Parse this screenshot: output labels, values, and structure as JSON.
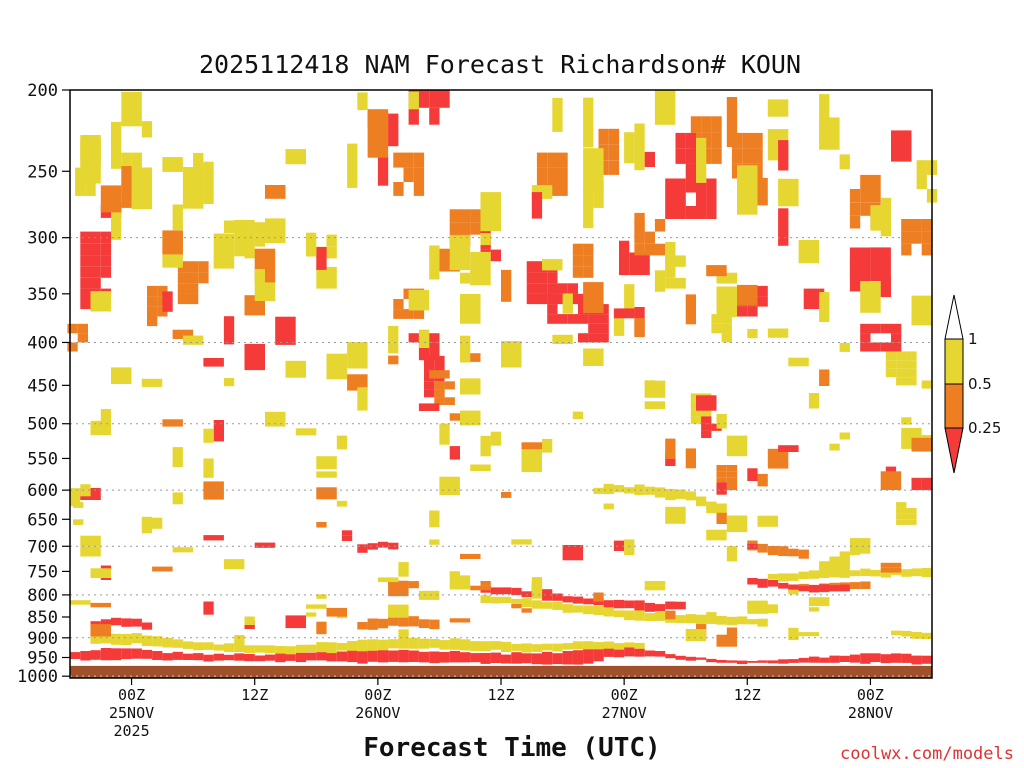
{
  "chart_data": {
    "type": "heatmap",
    "title": "2025112418 NAM Forecast Richardson# KOUN",
    "xlabel": "Forecast Time (UTC)",
    "ylabel": "",
    "credit": "coolwx.com/models",
    "y_axis": {
      "unit": "pressure (hPa)",
      "scale": "log-pressure",
      "range": [
        200,
        1000
      ],
      "ticks": [
        200,
        250,
        300,
        350,
        400,
        450,
        500,
        550,
        600,
        650,
        700,
        750,
        800,
        850,
        900,
        950,
        1000
      ],
      "tick_labels": [
        "200",
        "250",
        "300",
        "350",
        "400",
        "450",
        "500",
        "550",
        "600",
        "650",
        "700",
        "750",
        "800",
        "850",
        "900",
        "950",
        "1000"
      ],
      "dotted_grid_at": [
        300,
        400,
        500,
        600,
        700,
        800,
        900,
        1000
      ]
    },
    "x_axis": {
      "range_hours_from_init": [
        0,
        84
      ],
      "ticks": [
        {
          "hour": 6,
          "lines": [
            "00Z",
            "25NOV",
            "2025"
          ]
        },
        {
          "hour": 18,
          "lines": [
            "12Z"
          ]
        },
        {
          "hour": 30,
          "lines": [
            "00Z",
            "26NOV"
          ]
        },
        {
          "hour": 42,
          "lines": [
            "12Z"
          ]
        },
        {
          "hour": 54,
          "lines": [
            "00Z",
            "27NOV"
          ]
        },
        {
          "hour": 66,
          "lines": [
            "12Z"
          ]
        },
        {
          "hour": 78,
          "lines": [
            "00Z",
            "28NOV"
          ]
        }
      ]
    },
    "colorbar": {
      "labels": [
        "1",
        "0.5",
        "0.25"
      ],
      "bins": [
        {
          "range": "> 1",
          "color": "#ffffff"
        },
        {
          "range": "0.5 - 1",
          "color": "#e6d632"
        },
        {
          "range": "0.25 - 0.5",
          "color": "#ee7e22"
        },
        {
          "range": "< 0.25",
          "color": "#f53a3a"
        }
      ]
    },
    "colors": {
      "low": "#f53a3a",
      "mid": "#ee7e22",
      "high": "#e6d632",
      "ground": "#a0502a"
    },
    "cell_size": {
      "dt_hours": 1,
      "dp_hpa": 10
    },
    "ground_pressure": [
      [
        0,
        972
      ],
      [
        6,
        972
      ],
      [
        12,
        972
      ],
      [
        18,
        972
      ],
      [
        24,
        972
      ],
      [
        30,
        972
      ],
      [
        36,
        972
      ],
      [
        42,
        972
      ],
      [
        48,
        972
      ],
      [
        54,
        972
      ],
      [
        60,
        972
      ],
      [
        66,
        972
      ],
      [
        72,
        972
      ],
      [
        78,
        972
      ],
      [
        84,
        972
      ]
    ],
    "bands": [
      {
        "cls": "low",
        "pts": [
          [
            0,
            935,
            955
          ],
          [
            2,
            930,
            955
          ],
          [
            4,
            925,
            955
          ],
          [
            6,
            925,
            955
          ],
          [
            8,
            935,
            955
          ],
          [
            12,
            940,
            958
          ],
          [
            18,
            942,
            960
          ],
          [
            24,
            935,
            960
          ],
          [
            30,
            930,
            965
          ],
          [
            36,
            935,
            962
          ],
          [
            42,
            940,
            965
          ],
          [
            48,
            935,
            968
          ],
          [
            50,
            925,
            965
          ],
          [
            52,
            920,
            950
          ],
          [
            54,
            925,
            945
          ],
          [
            58,
            940,
            950
          ],
          [
            62,
            955,
            962
          ],
          [
            66,
            958,
            966
          ],
          [
            70,
            955,
            965
          ],
          [
            74,
            945,
            962
          ],
          [
            78,
            940,
            965
          ],
          [
            84,
            945,
            968
          ]
        ]
      },
      {
        "cls": "high",
        "pts": [
          [
            2,
            895,
            915
          ],
          [
            6,
            890,
            915
          ],
          [
            10,
            905,
            925
          ],
          [
            14,
            915,
            935
          ],
          [
            20,
            920,
            940
          ],
          [
            26,
            910,
            935
          ],
          [
            32,
            900,
            925
          ],
          [
            38,
            905,
            930
          ],
          [
            44,
            915,
            935
          ],
          [
            50,
            910,
            930
          ],
          [
            56,
            915,
            925
          ]
        ]
      },
      {
        "cls": "low",
        "pts": [
          [
            2,
            860,
            880
          ],
          [
            4,
            850,
            870
          ],
          [
            6,
            855,
            875
          ],
          [
            8,
            870,
            885
          ]
        ]
      },
      {
        "cls": "mid",
        "pts": [
          [
            28,
            860,
            880
          ],
          [
            32,
            845,
            870
          ],
          [
            36,
            860,
            880
          ]
        ]
      },
      {
        "cls": "low",
        "pts": [
          [
            40,
            780,
            795
          ],
          [
            42,
            785,
            800
          ],
          [
            44,
            790,
            805
          ],
          [
            46,
            790,
            810
          ],
          [
            48,
            800,
            815
          ],
          [
            50,
            805,
            820
          ],
          [
            52,
            810,
            830
          ],
          [
            54,
            810,
            830
          ],
          [
            56,
            820,
            840
          ],
          [
            58,
            815,
            835
          ],
          [
            60,
            810,
            830
          ]
        ]
      },
      {
        "cls": "high",
        "pts": [
          [
            40,
            800,
            815
          ],
          [
            44,
            810,
            825
          ],
          [
            48,
            820,
            840
          ],
          [
            52,
            830,
            850
          ],
          [
            56,
            840,
            860
          ],
          [
            60,
            845,
            865
          ],
          [
            64,
            850,
            870
          ],
          [
            68,
            855,
            870
          ]
        ]
      },
      {
        "cls": "mid",
        "pts": [
          [
            70,
            780,
            795
          ],
          [
            74,
            775,
            790
          ],
          [
            78,
            770,
            785
          ]
        ]
      },
      {
        "cls": "high",
        "pts": [
          [
            68,
            755,
            770
          ],
          [
            72,
            750,
            765
          ],
          [
            76,
            745,
            760
          ],
          [
            80,
            745,
            760
          ],
          [
            84,
            745,
            760
          ]
        ]
      },
      {
        "cls": "low",
        "pts": [
          [
            66,
            765,
            780
          ],
          [
            68,
            770,
            785
          ],
          [
            72,
            780,
            795
          ],
          [
            76,
            775,
            790
          ]
        ]
      },
      {
        "cls": "low",
        "pts": [
          [
            28,
            695,
            710
          ],
          [
            30,
            690,
            705
          ],
          [
            32,
            695,
            710
          ]
        ]
      },
      {
        "cls": "mid",
        "pts": [
          [
            31,
            765,
            780
          ],
          [
            34,
            770,
            785
          ]
        ]
      },
      {
        "cls": "high",
        "pts": [
          [
            52,
            590,
            605
          ],
          [
            56,
            595,
            610
          ],
          [
            60,
            600,
            620
          ],
          [
            62,
            620,
            640
          ],
          [
            64,
            630,
            650
          ]
        ]
      },
      {
        "cls": "mid",
        "pts": [
          [
            66,
            690,
            705
          ],
          [
            68,
            700,
            715
          ],
          [
            72,
            710,
            725
          ]
        ]
      },
      {
        "cls": "high",
        "pts": [
          [
            80,
            880,
            895
          ],
          [
            84,
            890,
            910
          ]
        ]
      }
    ],
    "blobs": [
      {
        "t": 2.5,
        "p": 330,
        "dt": 3,
        "dp": 70,
        "cls": "low"
      },
      {
        "t": 0.5,
        "p": 390,
        "dt": 1.5,
        "dp": 40,
        "cls": "mid"
      },
      {
        "t": 1.5,
        "p": 250,
        "dt": 2,
        "dp": 25,
        "cls": "high"
      },
      {
        "t": 6,
        "p": 250,
        "dt": 2,
        "dp": 25,
        "cls": "high"
      },
      {
        "t": 8.5,
        "p": 360,
        "dt": 2,
        "dp": 35,
        "cls": "mid"
      },
      {
        "t": 12,
        "p": 340,
        "dt": 3,
        "dp": 40,
        "cls": "mid"
      },
      {
        "t": 18,
        "p": 300,
        "dt": 2,
        "dp": 25,
        "cls": "high"
      },
      {
        "t": 25,
        "p": 300,
        "dt": 2,
        "dp": 25,
        "cls": "high"
      },
      {
        "t": 33,
        "p": 250,
        "dt": 3,
        "dp": 25,
        "cls": "mid"
      },
      {
        "t": 35,
        "p": 210,
        "dt": 4,
        "dp": 20,
        "cls": "low"
      },
      {
        "t": 33,
        "p": 360,
        "dt": 3,
        "dp": 30,
        "cls": "mid"
      },
      {
        "t": 34.5,
        "p": 405,
        "dt": 3,
        "dp": 30,
        "cls": "low"
      },
      {
        "t": 35.5,
        "p": 440,
        "dt": 2,
        "dp": 50,
        "cls": "low"
      },
      {
        "t": 36.5,
        "p": 460,
        "dt": 2,
        "dp": 30,
        "cls": "mid"
      },
      {
        "t": 39,
        "p": 290,
        "dt": 4,
        "dp": 25,
        "cls": "mid"
      },
      {
        "t": 41,
        "p": 305,
        "dt": 2,
        "dp": 30,
        "cls": "low"
      },
      {
        "t": 46,
        "p": 340,
        "dt": 3,
        "dp": 40,
        "cls": "low"
      },
      {
        "t": 48.5,
        "p": 360,
        "dt": 4,
        "dp": 40,
        "cls": "low"
      },
      {
        "t": 51,
        "p": 380,
        "dt": 3,
        "dp": 40,
        "cls": "low"
      },
      {
        "t": 47,
        "p": 250,
        "dt": 3,
        "dp": 25,
        "cls": "mid"
      },
      {
        "t": 52.5,
        "p": 235,
        "dt": 2,
        "dp": 25,
        "cls": "mid"
      },
      {
        "t": 50,
        "p": 320,
        "dt": 2,
        "dp": 30,
        "cls": "mid"
      },
      {
        "t": 55,
        "p": 315,
        "dt": 3,
        "dp": 25,
        "cls": "low"
      },
      {
        "t": 56.5,
        "p": 300,
        "dt": 3,
        "dp": 30,
        "cls": "mid"
      },
      {
        "t": 60.5,
        "p": 270,
        "dt": 5,
        "dp": 30,
        "cls": "low"
      },
      {
        "t": 62,
        "p": 230,
        "dt": 3,
        "dp": 30,
        "cls": "mid"
      },
      {
        "t": 60,
        "p": 240,
        "dt": 2,
        "dp": 30,
        "cls": "low"
      },
      {
        "t": 66,
        "p": 240,
        "dt": 3,
        "dp": 30,
        "cls": "mid"
      },
      {
        "t": 59,
        "p": 330,
        "dt": 2,
        "dp": 30,
        "cls": "high"
      },
      {
        "t": 66.5,
        "p": 355,
        "dt": 3,
        "dp": 25,
        "cls": "low"
      },
      {
        "t": 72.5,
        "p": 355,
        "dt": 2,
        "dp": 20,
        "cls": "low"
      },
      {
        "t": 77.5,
        "p": 270,
        "dt": 3,
        "dp": 35,
        "cls": "mid"
      },
      {
        "t": 79,
        "p": 395,
        "dt": 4,
        "dp": 30,
        "cls": "low"
      },
      {
        "t": 82.5,
        "p": 300,
        "dt": 3,
        "dp": 30,
        "cls": "mid"
      },
      {
        "t": 83.5,
        "p": 255,
        "dt": 2,
        "dp": 25,
        "cls": "high"
      },
      {
        "t": 81,
        "p": 430,
        "dt": 3,
        "dp": 40,
        "cls": "high"
      },
      {
        "t": 81.5,
        "p": 640,
        "dt": 2,
        "dp": 40,
        "cls": "high"
      },
      {
        "t": 83,
        "p": 590,
        "dt": 2,
        "dp": 20,
        "cls": "low"
      },
      {
        "t": 80,
        "p": 570,
        "dt": 1,
        "dp": 15,
        "cls": "low"
      },
      {
        "t": 64,
        "p": 580,
        "dt": 2,
        "dp": 40,
        "cls": "mid"
      },
      {
        "t": 61.5,
        "p": 480,
        "dt": 2,
        "dp": 40,
        "cls": "high"
      },
      {
        "t": 62.5,
        "p": 505,
        "dt": 2,
        "dp": 30,
        "cls": "low"
      },
      {
        "t": 63.5,
        "p": 385,
        "dt": 2,
        "dp": 30,
        "cls": "high"
      },
      {
        "t": 0.8,
        "p": 640,
        "dt": 1,
        "dp": 60,
        "cls": "high"
      },
      {
        "t": 2,
        "p": 700,
        "dt": 2,
        "dp": 40,
        "cls": "high"
      },
      {
        "t": 27,
        "p": 680,
        "dt": 1,
        "dp": 20,
        "cls": "low"
      },
      {
        "t": 40,
        "p": 780,
        "dt": 2,
        "dp": 20,
        "cls": "mid"
      },
      {
        "t": 44,
        "p": 830,
        "dt": 2,
        "dp": 20,
        "cls": "mid"
      },
      {
        "t": 57,
        "p": 780,
        "dt": 2,
        "dp": 20,
        "cls": "high"
      },
      {
        "t": 75,
        "p": 720,
        "dt": 2,
        "dp": 20,
        "cls": "high"
      },
      {
        "t": 80,
        "p": 740,
        "dt": 2,
        "dp": 15,
        "cls": "mid"
      }
    ],
    "specks": {
      "count": 260,
      "t_range": [
        0,
        84
      ],
      "p_range": [
        200,
        900
      ],
      "mix": {
        "high": 0.65,
        "mid": 0.2,
        "low": 0.15
      }
    }
  }
}
